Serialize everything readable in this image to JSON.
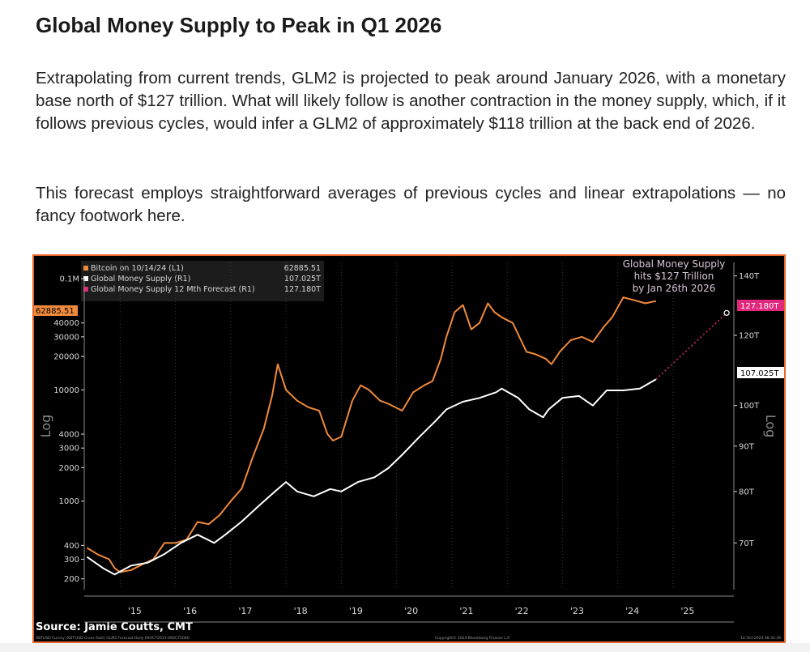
{
  "article": {
    "heading": "Global Money Supply to Peak in Q1 2026",
    "paragraph1": "Extrapolating from current trends, GLM2 is projected to peak around January 2026, with a monetary base north of $127 trillion. What will likely follow is another contraction in the money supply, which, if it follows previous cycles, would infer a GLM2 of approximately $118 trillion at the back end of 2026.",
    "paragraph2": "This forecast employs straightforward averages of previous cycles and linear extrapolations — no fancy footwork here."
  },
  "chart_data": {
    "type": "line",
    "ylabel_left": "Log",
    "ylabel_right": "Log",
    "left_axis": {
      "scale": "log",
      "ylim": [
        160,
        140000
      ],
      "ticks": [
        "200",
        "300",
        "400",
        "1000",
        "2000",
        "3000",
        "4000",
        "10000",
        "20000",
        "30000",
        "40000",
        "0.1M"
      ],
      "tick_values": [
        200,
        300,
        400,
        1000,
        2000,
        3000,
        4000,
        10000,
        20000,
        30000,
        40000,
        100000
      ]
    },
    "right_axis": {
      "scale": "log",
      "ylim": [
        62,
        145
      ],
      "ticks": [
        "70T",
        "80T",
        "90T",
        "100T",
        "120T",
        "140T"
      ],
      "tick_values": [
        70,
        80,
        90,
        100,
        120,
        140
      ]
    },
    "x_ticks": [
      "'15",
      "'16",
      "'17",
      "'18",
      "'19",
      "'20",
      "'21",
      "'22",
      "'23",
      "'24",
      "'25"
    ],
    "x_tick_values": [
      2015.1,
      2016.1,
      2017.1,
      2018.1,
      2019.1,
      2020.1,
      2021.1,
      2022.1,
      2023.1,
      2024.1,
      2025.1
    ],
    "legend": [
      {
        "label": "Bitcoin on 10/14/24 (L1)",
        "value": "62885.51",
        "color": "#f08a3c"
      },
      {
        "label": "Global Money Supply (R1)",
        "value": "107.025T",
        "color": "#ffffff"
      },
      {
        "label": "Global Money Supply 12 Mth Forecast (R1)",
        "value": "127.180T",
        "color": "#e0287d"
      }
    ],
    "value_tags": {
      "bitcoin": "62885.51",
      "money_supply": "107.025T",
      "forecast": "127.180T"
    },
    "annotation": [
      "Global Money Supply",
      "hits $127 Trillion",
      "by Jan 26th 2026"
    ],
    "source": "Source: Jamie Coutts, CMT",
    "footer_left": "XBTUSD Curncy (XBT-USD Cross Rate) GLM2 Forecast Daily 09OCT2013-09OCT2040",
    "footer_center": "Copyright© 2024 Bloomberg Finance L.P.",
    "footer_right": "14-Oct-2024 08:32:39",
    "series": [
      {
        "name": "Bitcoin on 10/14/24 (L1)",
        "axis": "left",
        "color": "#f08a3c",
        "x": [
          2014.5,
          2014.7,
          2014.9,
          2015.0,
          2015.1,
          2015.3,
          2015.5,
          2015.7,
          2015.9,
          2016.1,
          2016.3,
          2016.5,
          2016.7,
          2016.9,
          2017.1,
          2017.3,
          2017.5,
          2017.7,
          2017.85,
          2017.95,
          2018.1,
          2018.3,
          2018.5,
          2018.7,
          2018.85,
          2018.95,
          2019.1,
          2019.3,
          2019.45,
          2019.6,
          2019.8,
          2019.95,
          2020.2,
          2020.4,
          2020.6,
          2020.75,
          2020.9,
          2021.0,
          2021.15,
          2021.3,
          2021.45,
          2021.6,
          2021.75,
          2021.87,
          2022.0,
          2022.2,
          2022.45,
          2022.6,
          2022.8,
          2022.9,
          2023.05,
          2023.25,
          2023.45,
          2023.65,
          2023.85,
          2024.0,
          2024.2,
          2024.4,
          2024.6,
          2024.79
        ],
        "y": [
          380,
          330,
          300,
          250,
          230,
          240,
          270,
          300,
          420,
          420,
          450,
          650,
          620,
          750,
          1000,
          1300,
          2500,
          4500,
          9000,
          17000,
          10000,
          8000,
          7000,
          6500,
          4000,
          3500,
          3800,
          8000,
          11000,
          10000,
          8000,
          7500,
          6500,
          9500,
          11000,
          12000,
          19000,
          30000,
          50000,
          58000,
          35000,
          40000,
          60000,
          50000,
          45000,
          40000,
          22000,
          21000,
          19000,
          17000,
          22000,
          28000,
          30000,
          27000,
          37000,
          45000,
          68000,
          64000,
          60000,
          62885.51
        ]
      },
      {
        "name": "Global Money Supply (R1)",
        "axis": "right",
        "color": "#ffffff",
        "x": [
          2014.5,
          2014.8,
          2015.0,
          2015.3,
          2015.6,
          2015.9,
          2016.2,
          2016.5,
          2016.8,
          2017.0,
          2017.3,
          2017.6,
          2017.9,
          2018.1,
          2018.3,
          2018.6,
          2018.9,
          2019.1,
          2019.4,
          2019.7,
          2019.95,
          2020.2,
          2020.5,
          2020.8,
          2021.0,
          2021.3,
          2021.6,
          2021.9,
          2022.0,
          2022.3,
          2022.5,
          2022.75,
          2022.85,
          2023.1,
          2023.4,
          2023.65,
          2023.9,
          2024.2,
          2024.5,
          2024.79
        ],
        "y": [
          67.5,
          65.5,
          64.5,
          66,
          66.5,
          68,
          70,
          71.5,
          70,
          71.5,
          74,
          77,
          80,
          82,
          80,
          79,
          80.5,
          80,
          82,
          83,
          85,
          88,
          92,
          96,
          99,
          101,
          102,
          103.5,
          104.5,
          102,
          99,
          97,
          99,
          102,
          102.5,
          100,
          104,
          104,
          104.5,
          107.025
        ]
      },
      {
        "name": "Global Money Supply 12 Mth Forecast (R1)",
        "axis": "right",
        "color": "#e0287d",
        "x": [
          2024.79,
          2026.07
        ],
        "y": [
          107.025,
          127.18
        ]
      }
    ]
  }
}
